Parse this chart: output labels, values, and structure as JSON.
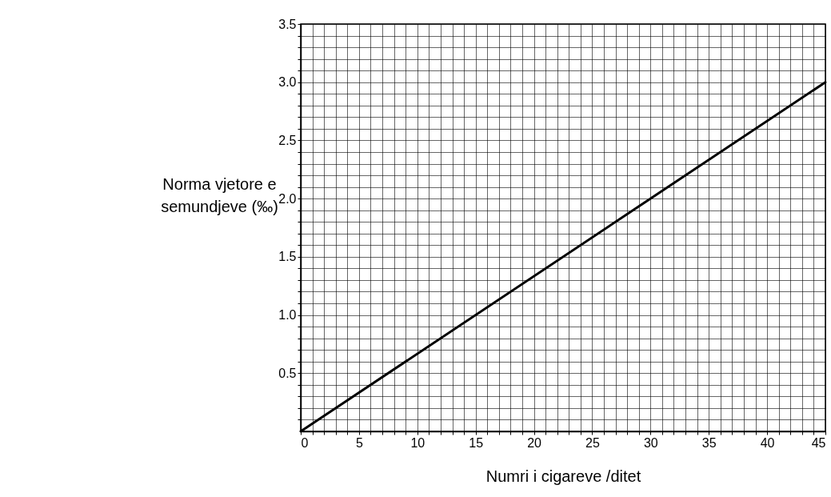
{
  "chart_data": {
    "type": "line",
    "xlabel": "Numri i cigareve /ditet",
    "ylabel": "Norma vjetore e semundjeve (‰)",
    "x": [
      0,
      45
    ],
    "series": [
      {
        "color": "#000000",
        "values": [
          0,
          3.0
        ]
      }
    ],
    "xlim": [
      0,
      45
    ],
    "ylim": [
      0,
      3.5
    ],
    "xticks": [
      0,
      {
        "value": 1,
        "label": null
      },
      {
        "value": 2,
        "label": null
      },
      {
        "value": 3,
        "label": null
      },
      {
        "value": 4,
        "label": null
      },
      5,
      {
        "value": 6,
        "label": null
      },
      {
        "value": 7,
        "label": null
      },
      {
        "value": 8,
        "label": null
      },
      {
        "value": 9,
        "label": null
      },
      10,
      {
        "value": 11,
        "label": null
      },
      {
        "value": 12,
        "label": null
      },
      {
        "value": 13,
        "label": null
      },
      {
        "value": 14,
        "label": null
      },
      15,
      {
        "value": 16,
        "label": null
      },
      {
        "value": 17,
        "label": null
      },
      {
        "value": 18,
        "label": null
      },
      {
        "value": 19,
        "label": null
      },
      20,
      {
        "value": 21,
        "label": null
      },
      {
        "value": 22,
        "label": null
      },
      {
        "value": 23,
        "label": null
      },
      {
        "value": 24,
        "label": null
      },
      25,
      {
        "value": 26,
        "label": null
      },
      {
        "value": 27,
        "label": null
      },
      {
        "value": 28,
        "label": null
      },
      {
        "value": 29,
        "label": null
      },
      30,
      {
        "value": 31,
        "label": null
      },
      {
        "value": 32,
        "label": null
      },
      {
        "value": 33,
        "label": null
      },
      {
        "value": 34,
        "label": null
      },
      35,
      {
        "value": 36,
        "label": null
      },
      {
        "value": 37,
        "label": null
      },
      {
        "value": 38,
        "label": null
      },
      {
        "value": 39,
        "label": null
      },
      40,
      {
        "value": 41,
        "label": null
      },
      {
        "value": 42,
        "label": null
      },
      {
        "value": 43,
        "label": null
      },
      {
        "value": 44,
        "label": null
      },
      45
    ],
    "yticks": [
      {
        "value": 0.1,
        "label": null
      },
      {
        "value": 0.2,
        "label": null
      },
      {
        "value": 0.3,
        "label": null
      },
      {
        "value": 0.4,
        "label": null
      },
      0.5,
      {
        "value": 0.6,
        "label": null
      },
      {
        "value": 0.7,
        "label": null
      },
      {
        "value": 0.8,
        "label": null
      },
      {
        "value": 0.9,
        "label": null
      },
      {
        "value": 1,
        "label": "1.0"
      },
      {
        "value": 1.1,
        "label": null
      },
      {
        "value": 1.2,
        "label": null
      },
      {
        "value": 1.3,
        "label": null
      },
      {
        "value": 1.4,
        "label": null
      },
      1.5,
      {
        "value": 1.6,
        "label": null
      },
      {
        "value": 1.7,
        "label": null
      },
      {
        "value": 1.8,
        "label": null
      },
      {
        "value": 1.9,
        "label": null
      },
      {
        "value": 2,
        "label": "2.0"
      },
      {
        "value": 2.1,
        "label": null
      },
      {
        "value": 2.2,
        "label": null
      },
      {
        "value": 2.3,
        "label": null
      },
      {
        "value": 2.4,
        "label": null
      },
      2.5,
      {
        "value": 2.6,
        "label": null
      },
      {
        "value": 2.7,
        "label": null
      },
      {
        "value": 2.8,
        "label": null
      },
      {
        "value": 2.9,
        "label": null
      },
      {
        "value": 3,
        "label": "3.0"
      },
      {
        "value": 3.1,
        "label": null
      },
      {
        "value": 3.2,
        "label": null
      },
      {
        "value": 3.3,
        "label": null
      },
      {
        "value": 3.4,
        "label": null
      },
      3.5
    ],
    "grid": true,
    "marker": "none",
    "line_style": "solid"
  }
}
